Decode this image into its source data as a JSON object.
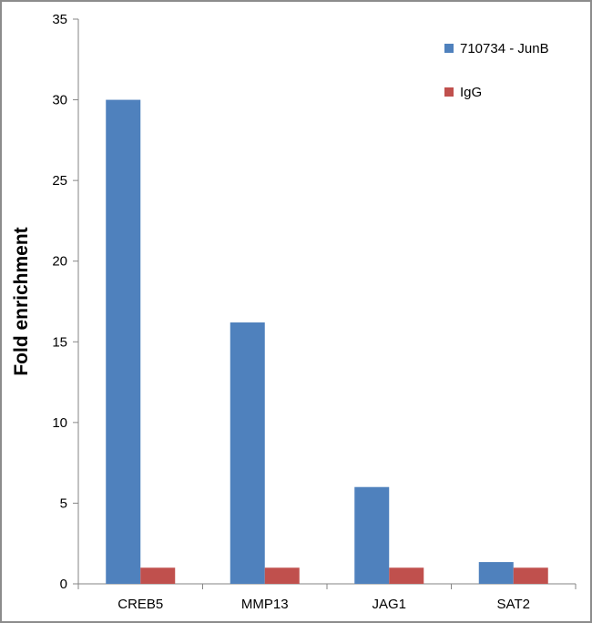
{
  "chart_data": {
    "type": "bar",
    "categories": [
      "CREB5",
      "MMP13",
      "JAG1",
      "SAT2"
    ],
    "series": [
      {
        "name": "710734 - JunB",
        "values": [
          30,
          16.2,
          6.0,
          1.35
        ],
        "color": "#4f81bd"
      },
      {
        "name": "IgG",
        "values": [
          1.0,
          1.0,
          1.0,
          1.0
        ],
        "color": "#c0504d"
      }
    ],
    "xlabel": "",
    "ylabel": "Fold enrichment",
    "ylim": [
      0,
      35
    ],
    "yticks": [
      0,
      5,
      10,
      15,
      20,
      25,
      30,
      35
    ],
    "grid": false,
    "legend_position": "top-right"
  }
}
